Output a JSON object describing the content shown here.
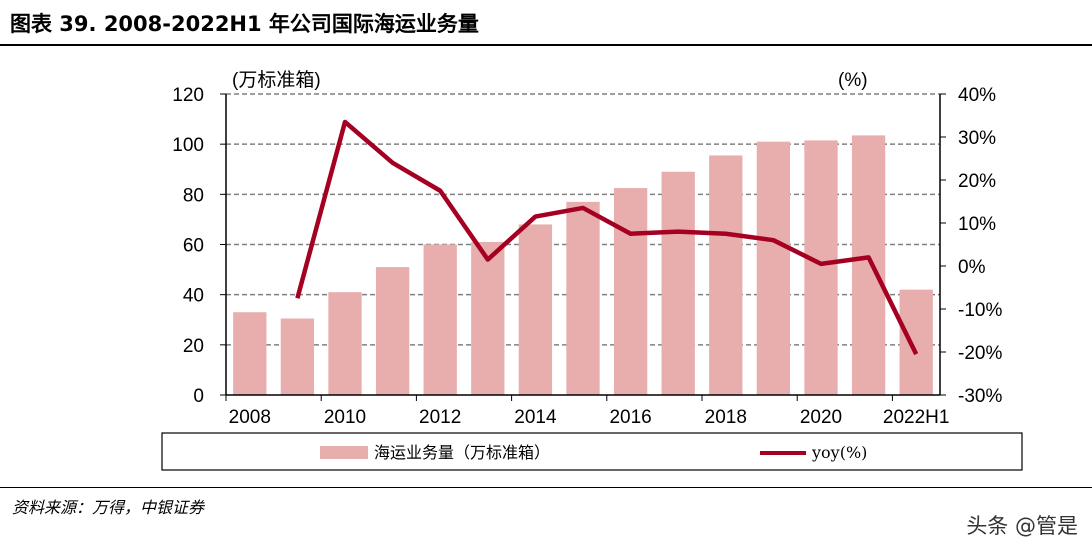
{
  "title": "图表 39. 2008-2022H1 年公司国际海运业务量",
  "source": "资料来源：万得，中银证券",
  "watermark": "头条 @管是",
  "chart_data": {
    "type": "bar+line",
    "categories": [
      "2008",
      "2009",
      "2010",
      "2011",
      "2012",
      "2013",
      "2014",
      "2015",
      "2016",
      "2017",
      "2018",
      "2019",
      "2020",
      "2021",
      "2022H1"
    ],
    "x_tick_labels": [
      "2008",
      "2010",
      "2012",
      "2014",
      "2016",
      "2018",
      "2020",
      "2022H1"
    ],
    "left_axis": {
      "unit_label": "(万标准箱)",
      "ylim": [
        0,
        120
      ],
      "ticks": [
        "0",
        "20",
        "40",
        "60",
        "80",
        "100",
        "120"
      ]
    },
    "right_axis": {
      "unit_label": "(%)",
      "ylim": [
        -30,
        40
      ],
      "ticks": [
        "-30%",
        "-20%",
        "-10%",
        "0%",
        "10%",
        "20%",
        "30%",
        "40%"
      ]
    },
    "grid": true,
    "legend_placement": "bottom",
    "series": [
      {
        "name": "海运业务量（万标准箱）",
        "type": "bar",
        "axis": "left",
        "color": "#e8aeae",
        "values": [
          33,
          30.5,
          41,
          51,
          60,
          61,
          68,
          77,
          82.5,
          89,
          95.5,
          101,
          101.5,
          103.5,
          42
        ]
      },
      {
        "name": "yoy(%)",
        "type": "line",
        "axis": "right",
        "color": "#a50021",
        "values": [
          null,
          -7.5,
          33.5,
          24,
          17.5,
          1.5,
          11.5,
          13.5,
          7.5,
          8,
          7.5,
          6,
          0.5,
          2,
          -20.5
        ]
      }
    ]
  }
}
